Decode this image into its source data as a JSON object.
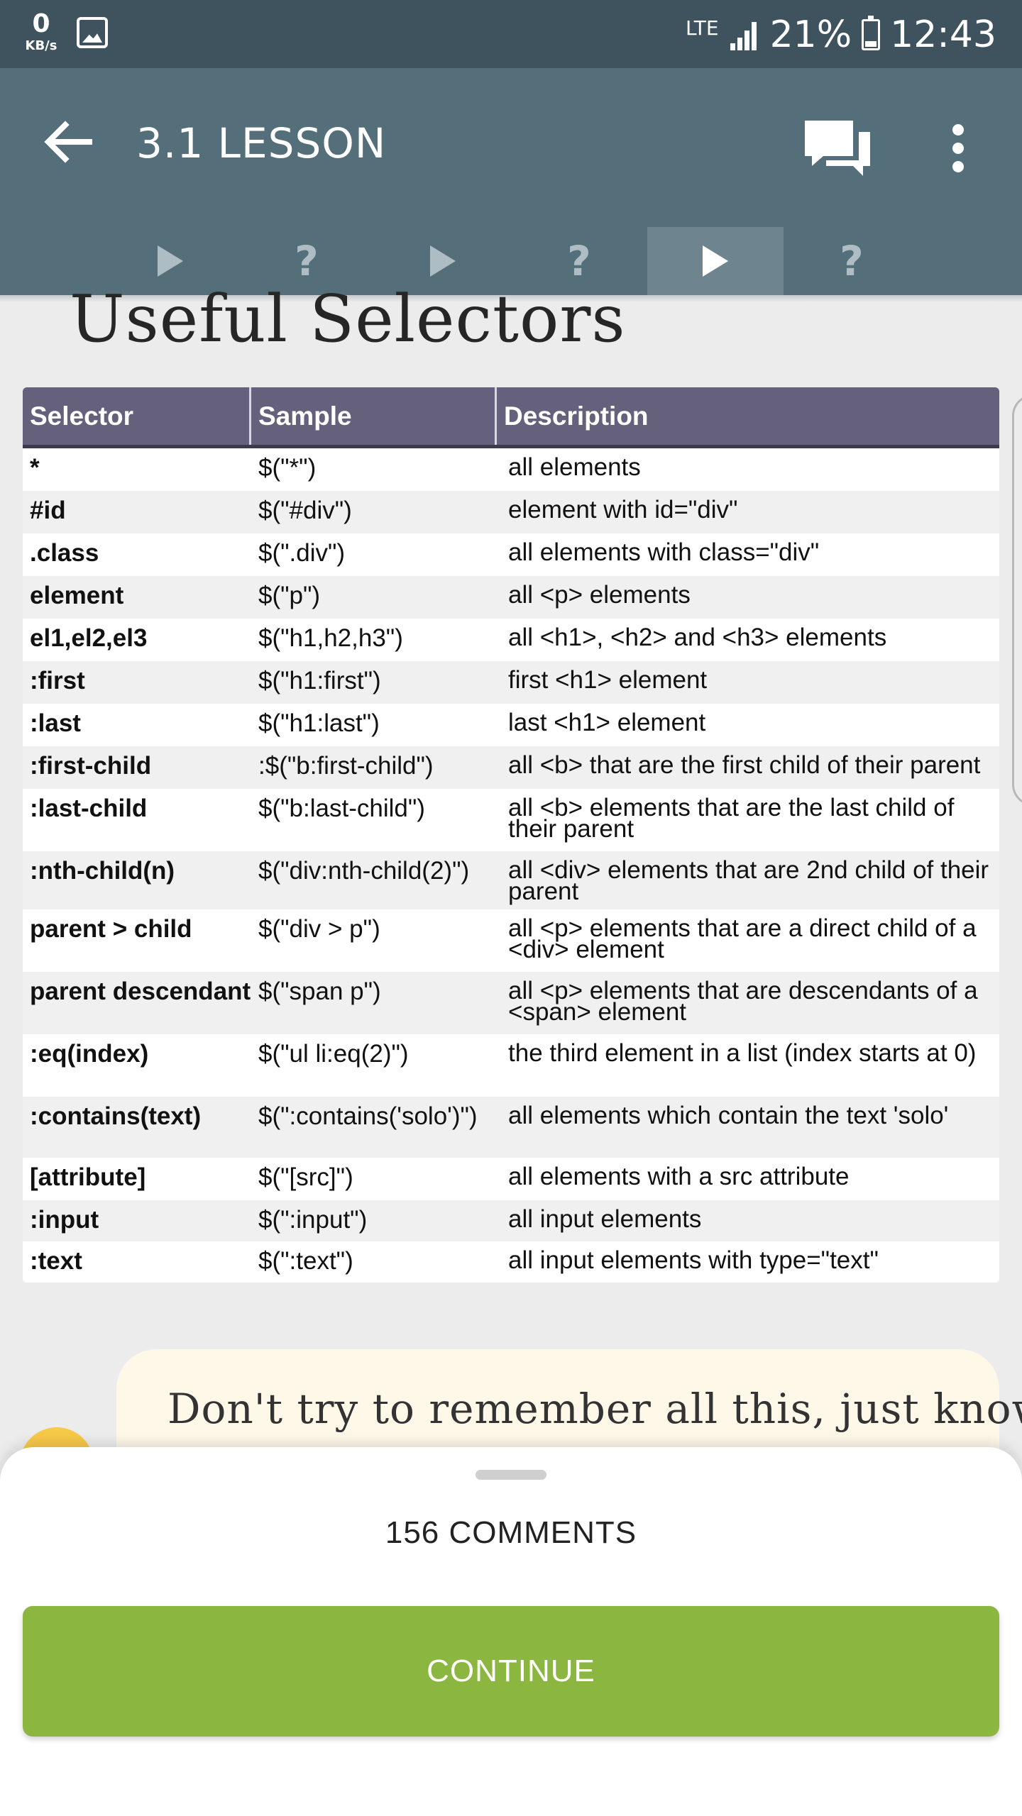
{
  "status_bar": {
    "net_speed_value": "0",
    "net_speed_unit": "KB/s",
    "network": "LTE",
    "battery": "21%",
    "battery_level": 0.21,
    "time": "12:43"
  },
  "app_bar": {
    "title": "3.1 LESSON",
    "icons": [
      "back-arrow-icon",
      "comments-icon",
      "more-vert-icon"
    ]
  },
  "steps": [
    {
      "type": "play",
      "label": ""
    },
    {
      "type": "quiz",
      "label": "?"
    },
    {
      "type": "play",
      "label": ""
    },
    {
      "type": "quiz",
      "label": "?"
    },
    {
      "type": "play",
      "label": "",
      "active": true
    },
    {
      "type": "quiz",
      "label": "?"
    }
  ],
  "lesson": {
    "heading": "Useful Selectors",
    "table": {
      "headers": [
        "Selector",
        "Sample",
        "Description"
      ],
      "rows": [
        [
          "*",
          "$(\"*\")",
          "all elements"
        ],
        [
          "#id",
          "$(\"#div\")",
          "element with id=\"div\""
        ],
        [
          ".class",
          "$(\".div\")",
          "all elements with class=\"div\""
        ],
        [
          "element",
          "$(\"p\")",
          "all <p> elements"
        ],
        [
          "el1,el2,el3",
          "$(\"h1,h2,h3\")",
          "all <h1>, <h2> and <h3> elements"
        ],
        [
          ":first",
          "$(\"h1:first\")",
          "first <h1> element"
        ],
        [
          ":last",
          "$(\"h1:last\")",
          "last <h1> element"
        ],
        [
          ":first-child",
          ":$(\"b:first-child\")",
          "all <b> that are the first child of their parent"
        ],
        [
          ":last-child",
          "$(\"b:last-child\")",
          "all <b> elements that are the last child of their parent"
        ],
        [
          ":nth-child(n)",
          "$(\"div:nth-child(2)\")",
          "all <div> elements that are 2nd child of their parent"
        ],
        [
          "parent > child",
          "$(\"div > p\")",
          "all <p> elements that are a direct child of a <div> element"
        ],
        [
          "parent descendant",
          "$(\"span p\")",
          "all <p> elements that are descendants of a <span> element"
        ],
        [
          ":eq(index)",
          "$(\"ul li:eq(2)\")",
          "the third element in a list (index starts at 0)"
        ],
        [
          ":contains(text)",
          "$(\":contains('solo')\")",
          "all elements which contain the text 'solo'"
        ],
        [
          "[attribute]",
          "$(\"[src]\")",
          "all elements with a src attribute"
        ],
        [
          ":input",
          "$(\":input\")",
          "all input elements"
        ],
        [
          ":text",
          "$(\":text\")",
          "all input elements with type=\"text\""
        ]
      ]
    },
    "tip": "Don't try to remember all this, just know"
  },
  "bottom_sheet": {
    "comments_label": "156 COMMENTS",
    "continue_label": "CONTINUE"
  },
  "colors": {
    "status_bar": "#3f535f",
    "app_bar": "#546e7a",
    "table_header": "#65617d",
    "tip_background": "#fdf8e8",
    "continue_button": "#8bb740"
  }
}
